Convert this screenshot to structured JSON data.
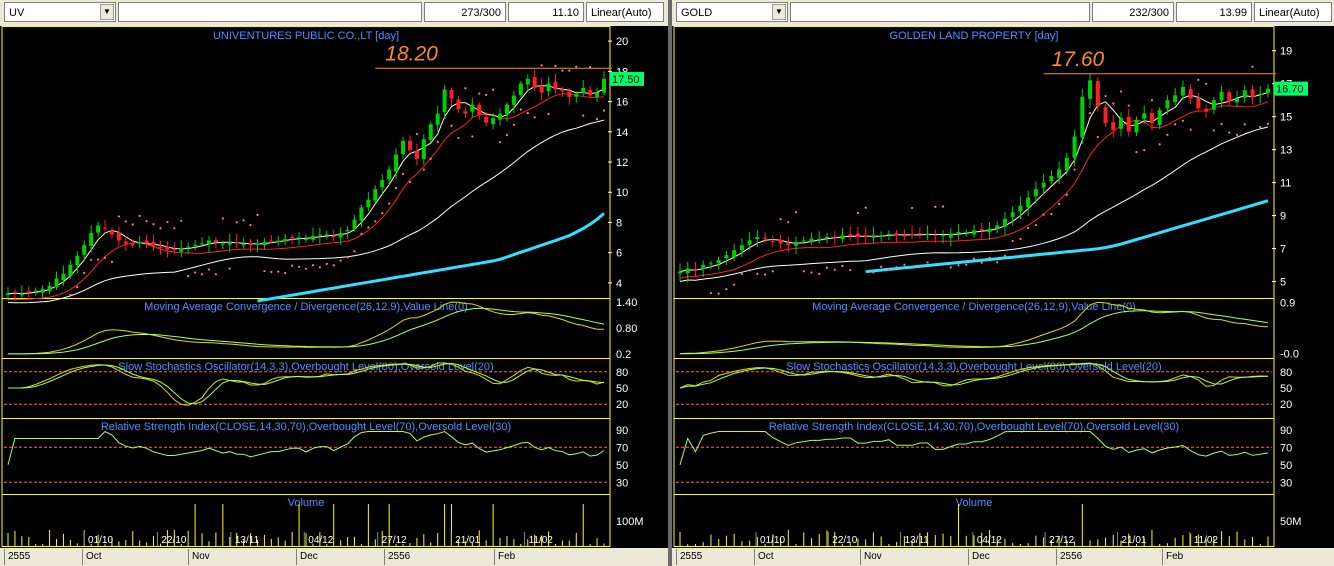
{
  "colors": {
    "background": "#000000",
    "panel_border": "#ffff00",
    "title_text": "#4f8fff",
    "price_annotation": "#ff8c1a",
    "axis_text": "#ffffff",
    "up_candle": "#00d000",
    "down_candle": "#ff2020",
    "ma_fast": "#ffffcc",
    "ma_mid": "#ff2020",
    "ma_slow": "#ffffff",
    "ma_long": "#30e0ff",
    "sar": "#ff8080",
    "indicator_line": "#dddd00",
    "signal_line": "#aaff55",
    "level_line": "#ff6060",
    "last_price_bg": "#00ff66"
  },
  "left": {
    "symbol": "UV",
    "count": "273/300",
    "value": "11.10",
    "scale_mode": "Linear(Auto)",
    "title": "UNIVENTURES PUBLIC CO.,LT [day]",
    "annotation": "18.20",
    "last_price": "17.50",
    "price_ticks": [
      "20",
      "18",
      "16",
      "14",
      "12",
      "10",
      "8",
      "6",
      "4"
    ],
    "macd_title": "Moving Average Convergence / Divergence(26,12,9),Value Line(0)",
    "macd_ticks": [
      "1.40",
      "0.80",
      "0.2"
    ],
    "stoch_title": "Slow Stochastics Oscillator(14,3,3),Overbought Level(80),Oversold Level(20)",
    "stoch_ticks": [
      "80",
      "50",
      "20"
    ],
    "rsi_title": "Relative Strength Index(CLOSE,14,30,70),Overbought Level(70),Oversold Level(30)",
    "rsi_ticks": [
      "90",
      "70",
      "50",
      "30"
    ],
    "volume_title": "Volume",
    "volume_tick": "100M",
    "date_labels": [
      "01/10",
      "22/10",
      "13/11",
      "04/12",
      "27/12",
      "21/01",
      "11/02"
    ],
    "time_labels": [
      "2555",
      "Oct",
      "Nov",
      "Dec",
      "2556",
      "Feb"
    ]
  },
  "right": {
    "symbol": "GOLD",
    "count": "232/300",
    "value": "13.99",
    "scale_mode": "Linear(Auto)",
    "title": "GOLDEN LAND PROPERTY [day]",
    "annotation": "17.60",
    "last_price": "16.70",
    "price_ticks": [
      "19",
      "17",
      "15",
      "13",
      "11",
      "9",
      "7",
      "5"
    ],
    "macd_title": "Moving Average Convergence / Divergence(26,12,9),Value Line(0)",
    "macd_ticks": [
      "0.9",
      "-0.0"
    ],
    "stoch_title": "Slow Stochastics Oscillator(14,3,3),Overbought Level(80),Oversold Level(20)",
    "stoch_ticks": [
      "80",
      "50",
      "20"
    ],
    "rsi_title": "Relative Strength Index(CLOSE,14,30,70),Overbought Level(70),Oversold Level(30)",
    "rsi_ticks": [
      "90",
      "70",
      "50",
      "30"
    ],
    "volume_title": "Volume",
    "volume_tick": "50M",
    "date_labels": [
      "01/10",
      "22/10",
      "13/11",
      "04/12",
      "27/12",
      "21/01",
      "11/02"
    ],
    "time_labels": [
      "2555",
      "Oct",
      "Nov",
      "Dec",
      "2556",
      "Feb"
    ]
  },
  "chart_data": [
    {
      "type": "candlestick",
      "symbol": "UV",
      "title": "UNIVENTURES PUBLIC CO.,LT [day]",
      "ylim": [
        3,
        21
      ],
      "close": [
        3.3,
        3.3,
        3.3,
        3.4,
        3.5,
        3.6,
        3.8,
        4.3,
        4.6,
        5.2,
        5.8,
        6.5,
        7.3,
        7.8,
        7.6,
        7.2,
        6.8,
        6.6,
        6.5,
        6.7,
        6.6,
        6.4,
        6.3,
        6.2,
        6.2,
        6.3,
        6.4,
        6.5,
        6.6,
        6.8,
        6.7,
        6.6,
        6.7,
        6.6,
        6.6,
        6.5,
        6.6,
        6.7,
        6.8,
        6.8,
        6.9,
        7.0,
        7.0,
        6.9,
        7.1,
        7.2,
        7.2,
        7.1,
        7.3,
        7.5,
        8.2,
        9.0,
        9.5,
        10.2,
        10.8,
        11.5,
        12.5,
        13.4,
        12.8,
        12.2,
        13.5,
        14.5,
        15.2,
        16.8,
        16.2,
        15.5,
        15.2,
        15.8,
        15.1,
        14.6,
        14.9,
        15.2,
        15.8,
        16.4,
        17.2,
        17.5,
        16.9,
        16.6,
        17.2,
        16.8,
        16.7,
        16.3,
        16.5,
        16.9,
        16.4,
        16.6,
        17.5
      ],
      "ma_long": [
        2.8,
        2.9,
        3.0,
        3.1,
        3.2,
        3.3,
        3.4,
        3.5,
        3.6,
        3.7,
        3.8,
        3.9,
        4.0,
        4.1,
        4.2,
        4.3,
        4.4,
        4.5,
        4.6,
        4.7,
        4.8,
        4.9,
        5.0,
        5.1,
        5.2,
        5.3,
        5.4,
        5.5,
        5.7,
        5.9,
        6.1,
        6.3,
        6.5,
        6.7,
        6.9,
        7.1,
        7.4,
        7.7,
        8.1,
        8.6
      ],
      "volume_label": "100M"
    },
    {
      "type": "candlestick",
      "symbol": "GOLD",
      "title": "GOLDEN LAND PROPERTY [day]",
      "ylim": [
        4,
        20.5
      ],
      "close": [
        5.6,
        5.8,
        5.7,
        6.0,
        6.1,
        6.3,
        6.6,
        6.9,
        7.2,
        7.5,
        7.7,
        7.6,
        7.4,
        7.3,
        7.2,
        7.4,
        7.5,
        7.6,
        7.6,
        7.7,
        7.7,
        7.8,
        7.8,
        7.7,
        7.7,
        7.8,
        7.8,
        7.9,
        7.8,
        7.8,
        7.8,
        7.9,
        7.9,
        7.8,
        7.8,
        7.9,
        8.0,
        8.0,
        8.1,
        8.1,
        8.2,
        8.4,
        8.8,
        9.2,
        9.6,
        10.1,
        10.6,
        11.0,
        11.4,
        11.8,
        12.5,
        13.8,
        16.2,
        17.2,
        15.6,
        14.6,
        14.2,
        14.9,
        14.1,
        14.8,
        15.2,
        14.6,
        15.4,
        16.0,
        16.3,
        16.8,
        16.1,
        15.5,
        15.3,
        16.0,
        16.5,
        15.9,
        16.1,
        16.6,
        16.2,
        16.4,
        16.7
      ],
      "ma_long": [
        5.6,
        5.7,
        5.8,
        5.9,
        6.0,
        6.1,
        6.2,
        6.3,
        6.4,
        6.5,
        6.6,
        6.7,
        6.8,
        6.9,
        7.0,
        7.2,
        7.5,
        7.8,
        8.1,
        8.4,
        8.7,
        9.0,
        9.3,
        9.6,
        9.9
      ]
    }
  ]
}
